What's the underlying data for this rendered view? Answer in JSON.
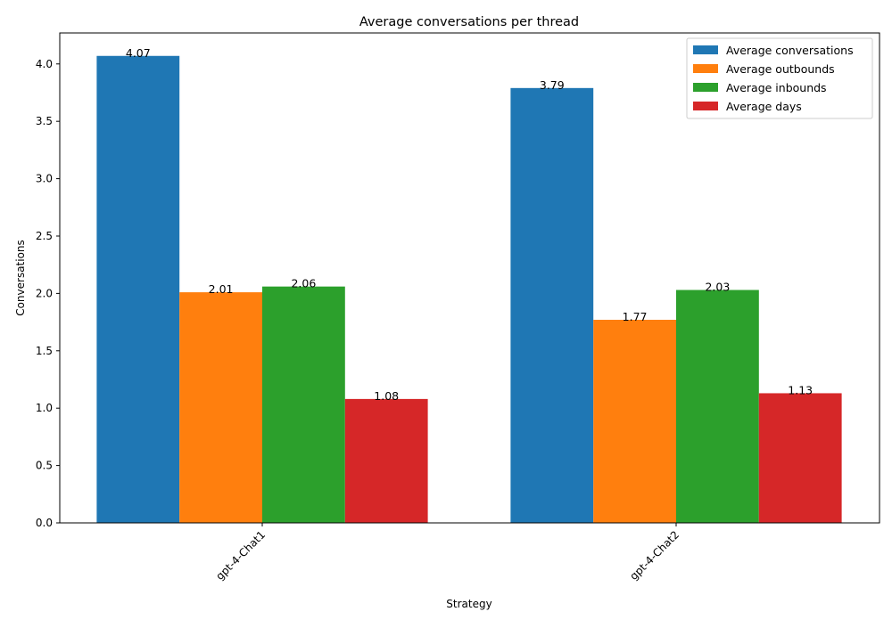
{
  "chart_data": {
    "type": "bar",
    "title": "Average conversations per thread",
    "xlabel": "Strategy",
    "ylabel": "Conversations",
    "categories": [
      "gpt-4-Chat1",
      "gpt-4-Chat2"
    ],
    "series": [
      {
        "name": "Average conversations",
        "values": [
          4.07,
          3.79
        ],
        "labels": [
          "4.07",
          "3.79"
        ],
        "color": "#1f77b4"
      },
      {
        "name": "Average outbounds",
        "values": [
          2.01,
          1.77
        ],
        "labels": [
          "2.01",
          "1.77"
        ],
        "color": "#ff7f0e"
      },
      {
        "name": "Average inbounds",
        "values": [
          2.06,
          2.03
        ],
        "labels": [
          "2.06",
          "2.03"
        ],
        "color": "#2ca02c"
      },
      {
        "name": "Average days",
        "values": [
          1.08,
          1.13
        ],
        "labels": [
          "1.08",
          "1.13"
        ],
        "color": "#d62728"
      }
    ],
    "ylim": [
      0,
      4.27
    ],
    "yticks": [
      "0.0",
      "0.5",
      "1.0",
      "1.5",
      "2.0",
      "2.5",
      "3.0",
      "3.5",
      "4.0"
    ],
    "legend_position": "top-right",
    "grid": false
  }
}
